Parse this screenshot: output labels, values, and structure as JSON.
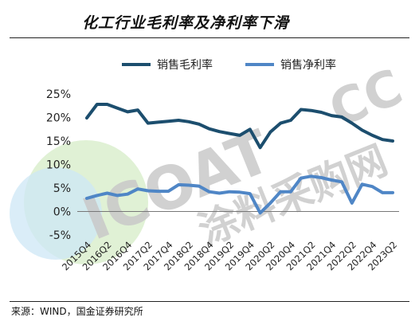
{
  "header": {
    "title": "化工行业毛利率及净利率下滑"
  },
  "footer": {
    "source": "来源：WIND，国金证券研究所"
  },
  "watermark": {
    "main": "ICOAT",
    "suffix": "CC",
    "sub": "涂料采购网"
  },
  "colors": {
    "gross": "#1c4e6e",
    "net": "#4f86c6",
    "watermark_text": "#c9c9c9",
    "watermark_green": "#d6ecc7",
    "watermark_blue": "#cde7f6"
  },
  "chart_data": {
    "type": "line",
    "title": "",
    "xlabel": "",
    "ylabel": "",
    "legend_placement": "top",
    "grid": false,
    "ylim": [
      -5,
      25
    ],
    "y_ticks": [
      -5,
      0,
      5,
      10,
      15,
      20,
      25
    ],
    "y_tick_labels": [
      "-5%",
      "0%",
      "5%",
      "10%",
      "15%",
      "20%",
      "25%"
    ],
    "x": [
      "2015Q4",
      "2016Q1",
      "2016Q2",
      "2016Q3",
      "2016Q4",
      "2017Q1",
      "2017Q2",
      "2017Q3",
      "2017Q4",
      "2018Q1",
      "2018Q2",
      "2018Q3",
      "2018Q4",
      "2019Q1",
      "2019Q2",
      "2019Q3",
      "2019Q4",
      "2020Q1",
      "2020Q2",
      "2020Q3",
      "2020Q4",
      "2021Q1",
      "2021Q2",
      "2021Q3",
      "2021Q4",
      "2022Q1",
      "2022Q2",
      "2022Q3",
      "2022Q4",
      "2023Q1",
      "2023Q2"
    ],
    "x_tick_labels": [
      "2015Q4",
      "2016Q2",
      "2016Q4",
      "2017Q2",
      "2017Q4",
      "2018Q2",
      "2018Q4",
      "2019Q2",
      "2019Q4",
      "2020Q2",
      "2020Q4",
      "2021Q2",
      "2021Q4",
      "2022Q2",
      "2022Q4",
      "2023Q2"
    ],
    "series": [
      {
        "name": "销售毛利率",
        "values": [
          19.9,
          22.8,
          22.8,
          22.0,
          21.2,
          21.6,
          18.8,
          19.0,
          19.2,
          19.4,
          19.1,
          18.6,
          17.6,
          17.0,
          16.6,
          16.2,
          17.5,
          13.6,
          16.9,
          18.8,
          19.4,
          21.7,
          21.5,
          21.1,
          20.4,
          20.1,
          18.8,
          17.3,
          16.2,
          15.3,
          15.0
        ]
      },
      {
        "name": "销售净利率",
        "values": [
          2.8,
          3.4,
          3.9,
          3.4,
          3.7,
          4.8,
          4.4,
          4.3,
          4.3,
          5.7,
          5.6,
          5.4,
          4.2,
          3.9,
          4.2,
          4.1,
          3.8,
          -0.3,
          1.8,
          4.2,
          4.2,
          7.1,
          7.5,
          7.2,
          6.7,
          6.3,
          1.8,
          5.8,
          5.3,
          4.0,
          4.0
        ]
      }
    ]
  }
}
